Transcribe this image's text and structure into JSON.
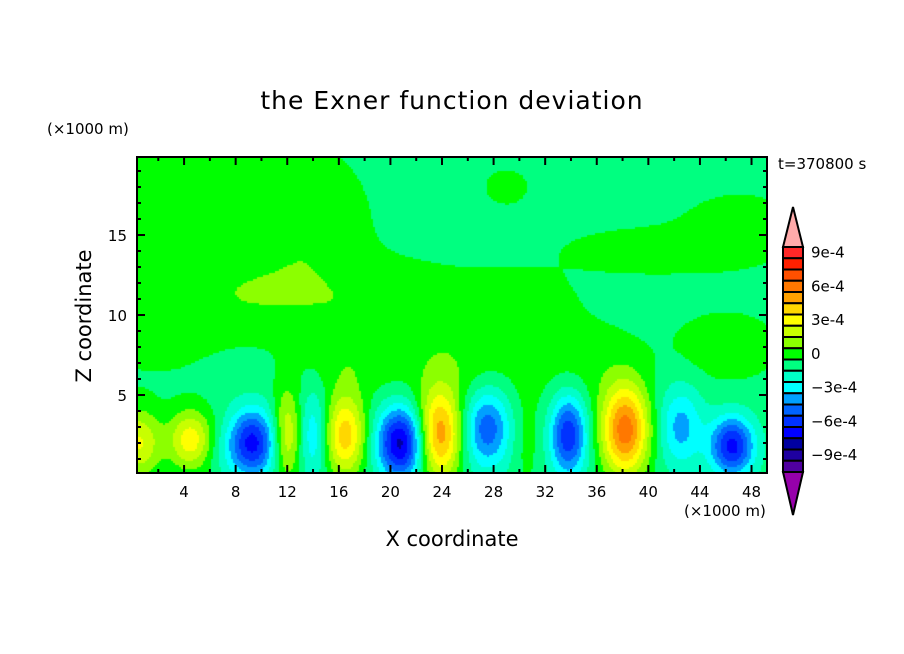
{
  "title": "the Exner function deviation",
  "time_label": "t=370800 s",
  "chart_data": {
    "type": "contour",
    "title": "the Exner function deviation",
    "xlabel": "X coordinate",
    "ylabel": "Z coordinate",
    "x_unit": "(×1000 m)",
    "y_unit": "(×1000 m)",
    "xlim": [
      0.35,
      49.2
    ],
    "ylim": [
      0.125,
      19.875
    ],
    "x_ticks": [
      4,
      8,
      12,
      16,
      20,
      24,
      28,
      32,
      36,
      40,
      44,
      48
    ],
    "y_ticks": [
      5,
      10,
      15
    ],
    "value_scale": 0.0001,
    "background_value": -0.4,
    "features_note_fields": [
      "x",
      "z",
      "amp",
      "sx",
      "sz"
    ],
    "features": [
      [
        4,
        17,
        1.3,
        6,
        3.5
      ],
      [
        14,
        15.5,
        1.0,
        3,
        3
      ],
      [
        9,
        11,
        1.0,
        4,
        1.8
      ],
      [
        20,
        10.5,
        1.2,
        5,
        2
      ],
      [
        30,
        11,
        0.8,
        3,
        1.3
      ],
      [
        40,
        14,
        0.9,
        5,
        1.1
      ],
      [
        47,
        15.5,
        1.0,
        3,
        1.5
      ],
      [
        46,
        8,
        1.0,
        3,
        1.6
      ],
      [
        35,
        7,
        0.9,
        3,
        2
      ],
      [
        26,
        6.5,
        1.1,
        3.5,
        2.2
      ],
      [
        2,
        9,
        0.8,
        3,
        2
      ],
      [
        17,
        7,
        0.9,
        3,
        1.5
      ],
      [
        29,
        18,
        0.7,
        1.5,
        1
      ],
      [
        0.5,
        2,
        3.5,
        1.2,
        1.5
      ],
      [
        4.5,
        2.2,
        4,
        1.2,
        1.3
      ],
      [
        9.3,
        2,
        -6,
        1.3,
        1.5
      ],
      [
        12,
        2.5,
        3.5,
        0.8,
        2
      ],
      [
        14,
        2.5,
        -2.5,
        0.8,
        2
      ],
      [
        16.5,
        2.5,
        5,
        1.1,
        1.8
      ],
      [
        20.8,
        2,
        -7,
        1.3,
        1.6
      ],
      [
        23.8,
        2.5,
        6,
        1.2,
        2
      ],
      [
        27.5,
        3,
        -4.5,
        1.3,
        1.8
      ],
      [
        30.5,
        2,
        0.8,
        0.8,
        2
      ],
      [
        33.8,
        2.5,
        -5.5,
        1.0,
        1.8
      ],
      [
        38.2,
        2.8,
        7,
        1.3,
        2
      ],
      [
        42.5,
        3,
        -3,
        1.2,
        1.8
      ],
      [
        46.5,
        1.8,
        -6,
        1.2,
        1.3
      ],
      [
        7,
        1.5,
        -0.5,
        1,
        1
      ]
    ],
    "colorbar": {
      "levels_min": -0.001,
      "levels_max": 0.001,
      "step": 0.0001,
      "labels": [
        "9e-4",
        "6e-4",
        "3e-4",
        "0",
        "−3e-4",
        "−6e-4",
        "−9e-4"
      ],
      "label_values": [
        9,
        6,
        3,
        0,
        -3,
        -6,
        -9
      ],
      "colors_top_to_bottom": [
        "#ff2828",
        "#ff2000",
        "#ff5000",
        "#ff7800",
        "#ffa000",
        "#ffd700",
        "#ffff00",
        "#c8ff00",
        "#8cff00",
        "#00ff00",
        "#00ff80",
        "#00ffc8",
        "#00ffff",
        "#00a0ff",
        "#0064ff",
        "#0032ff",
        "#0000ff",
        "#0000a0",
        "#1e00a0",
        "#5000a0"
      ],
      "over_color": "#ffaaaa",
      "under_color": "#9600aa"
    }
  }
}
